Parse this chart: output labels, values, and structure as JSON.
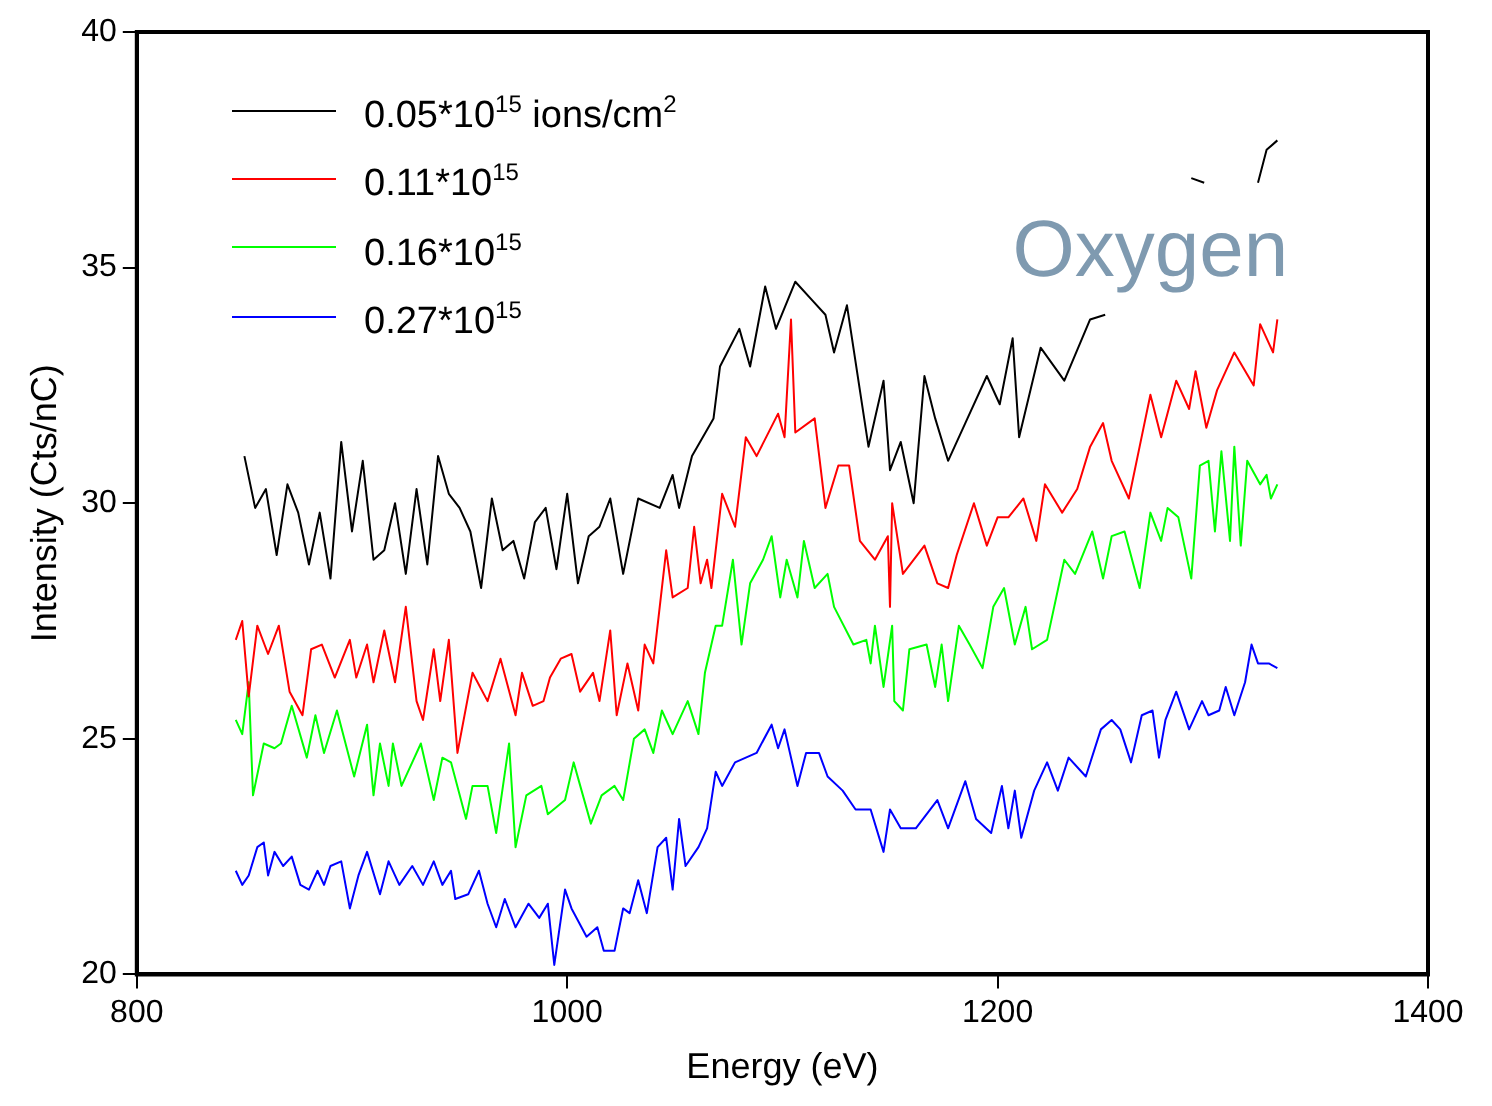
{
  "chart_data": {
    "type": "line",
    "xlabel": "Energy (eV)",
    "ylabel": "Intensity (Cts/nC)",
    "xlim": [
      800,
      1400
    ],
    "xticks": [
      800,
      1000,
      1200,
      1400
    ],
    "ylim": [
      20,
      40
    ],
    "yticks": [
      20,
      25,
      30,
      35,
      40
    ],
    "grid": false,
    "legend": "top left",
    "marker": "none",
    "line_style": "solid",
    "annotations": [
      "Oxygen"
    ],
    "series": [
      {
        "name": "0.05*10$^{15}$ ions/cm$^{2}$",
        "color": "#000000",
        "x": [
          850,
          855,
          860,
          865,
          870,
          875,
          880,
          885,
          890,
          895,
          900,
          905,
          910,
          915,
          920,
          925,
          930,
          935,
          940,
          945,
          950,
          955,
          960,
          965,
          970,
          975,
          980,
          985,
          990,
          995,
          1000,
          1005,
          1010,
          1015,
          1020,
          1026,
          1033,
          1043,
          1049,
          1052,
          1058,
          1068,
          1071,
          1080,
          1085,
          1092,
          1097,
          1106,
          1114,
          1120,
          1124,
          1130,
          1136,
          1140,
          1147,
          1150,
          1155,
          1161,
          1166,
          1171,
          1177,
          1185,
          1195,
          1201,
          1207,
          1210,
          1220,
          1231,
          1243,
          1250,
          1270,
          1290,
          1296,
          1310,
          1321,
          1325,
          1330
        ],
        "values": [
          31.0,
          29.9,
          30.3,
          28.9,
          30.4,
          29.8,
          28.7,
          29.8,
          28.4,
          31.3,
          29.4,
          30.9,
          28.8,
          29.0,
          30.0,
          28.5,
          30.3,
          28.7,
          31.0,
          30.2,
          29.9,
          29.4,
          28.2,
          30.1,
          29.0,
          29.2,
          28.4,
          29.6,
          29.9,
          28.6,
          30.2,
          28.3,
          29.3,
          29.5,
          30.1,
          28.5,
          30.1,
          29.9,
          30.6,
          29.9,
          31.0,
          31.8,
          32.9,
          33.7,
          32.9,
          34.6,
          33.7,
          34.7,
          34.3,
          34.0,
          33.2,
          34.2,
          32.4,
          31.2,
          32.6,
          30.7,
          31.3,
          30.0,
          32.7,
          31.8,
          30.9,
          31.7,
          32.7,
          32.1,
          33.5,
          31.4,
          33.3,
          32.6,
          33.9,
          34.0,
          null,
          36.9,
          36.8,
          null,
          36.8,
          37.5,
          37.7
        ]
      },
      {
        "name": "0.11*10$^{15}$",
        "color": "#ff0000",
        "x": [
          846,
          849,
          852,
          856,
          861,
          866,
          871,
          877,
          881,
          886,
          892,
          899,
          902,
          907,
          910,
          915,
          920,
          925,
          930,
          933,
          938,
          941,
          945,
          949,
          956,
          963,
          969,
          976,
          979,
          984,
          989,
          992,
          997,
          1002,
          1006,
          1012,
          1015,
          1020,
          1023,
          1028,
          1033,
          1036,
          1040,
          1046,
          1049,
          1056,
          1059,
          1062,
          1065,
          1067,
          1072,
          1078,
          1083,
          1088,
          1098,
          1101,
          1104,
          1106,
          1115,
          1120,
          1126,
          1131,
          1136,
          1143,
          1149,
          1150,
          1151,
          1156,
          1166,
          1172,
          1177,
          1181,
          1189,
          1195,
          1200,
          1205,
          1212,
          1218,
          1222,
          1230,
          1237,
          1243,
          1249,
          1253,
          1261,
          1266,
          1271,
          1276,
          1283,
          1289,
          1292,
          1297,
          1302,
          1310,
          1319,
          1322,
          1328,
          1330
        ],
        "values": [
          27.1,
          27.5,
          25.9,
          27.4,
          26.8,
          27.4,
          26.0,
          25.5,
          26.9,
          27.0,
          26.3,
          27.1,
          26.3,
          27.0,
          26.2,
          27.3,
          26.2,
          27.8,
          25.8,
          25.4,
          26.9,
          25.8,
          27.1,
          24.7,
          26.4,
          25.8,
          26.7,
          25.5,
          26.4,
          25.7,
          25.8,
          26.3,
          26.7,
          26.8,
          26.0,
          26.4,
          25.8,
          27.3,
          25.5,
          26.6,
          25.6,
          27.0,
          26.6,
          29.0,
          28.0,
          28.2,
          29.5,
          28.3,
          28.8,
          28.2,
          30.2,
          29.5,
          31.4,
          31.0,
          31.9,
          31.4,
          33.9,
          31.5,
          31.8,
          29.9,
          30.8,
          30.8,
          29.2,
          28.8,
          29.3,
          27.8,
          30.0,
          28.5,
          29.1,
          28.3,
          28.2,
          28.9,
          30.0,
          29.1,
          29.7,
          29.7,
          30.1,
          29.2,
          30.4,
          29.8,
          30.3,
          31.2,
          31.7,
          30.9,
          30.1,
          31.2,
          32.3,
          31.4,
          32.6,
          32.0,
          32.8,
          31.6,
          32.4,
          33.2,
          32.5,
          33.8,
          33.2,
          33.9
        ]
      },
      {
        "name": "0.16*10$^{15}$",
        "color": "#00ff00",
        "x": [
          846,
          849,
          852,
          854,
          859,
          864,
          867,
          872,
          879,
          883,
          887,
          893,
          901,
          907,
          910,
          913,
          917,
          919,
          923,
          932,
          938,
          942,
          946,
          953,
          956,
          963,
          967,
          973,
          976,
          981,
          988,
          991,
          999,
          1003,
          1011,
          1016,
          1022,
          1026,
          1031,
          1036,
          1040,
          1044,
          1049,
          1056,
          1061,
          1064,
          1069,
          1072,
          1077,
          1081,
          1085,
          1091,
          1095,
          1099,
          1102,
          1107,
          1110,
          1115,
          1121,
          1124,
          1133,
          1139,
          1141,
          1143,
          1147,
          1151,
          1152,
          1156,
          1159,
          1167,
          1171,
          1174,
          1177,
          1182,
          1187,
          1193,
          1198,
          1203,
          1208,
          1213,
          1216,
          1223,
          1231,
          1236,
          1244,
          1249,
          1253,
          1259,
          1266,
          1271,
          1276,
          1279,
          1284,
          1290,
          1294,
          1298,
          1301,
          1304,
          1308,
          1310,
          1313,
          1316,
          1322,
          1325,
          1327,
          1330
        ],
        "values": [
          25.4,
          25.1,
          26.2,
          23.8,
          24.9,
          24.8,
          24.9,
          25.7,
          24.6,
          25.5,
          24.7,
          25.6,
          24.2,
          25.3,
          23.8,
          24.9,
          24.0,
          24.9,
          24.0,
          24.9,
          23.7,
          24.6,
          24.5,
          23.3,
          24.0,
          24.0,
          23.0,
          24.9,
          22.7,
          23.8,
          24.0,
          23.4,
          23.7,
          24.5,
          23.2,
          23.8,
          24.0,
          23.7,
          25.0,
          25.2,
          24.7,
          25.6,
          25.1,
          25.8,
          25.1,
          26.4,
          27.4,
          27.4,
          28.8,
          27.0,
          28.3,
          28.8,
          29.3,
          28.0,
          28.8,
          28.0,
          29.2,
          28.2,
          28.5,
          27.8,
          27.0,
          27.1,
          26.6,
          27.4,
          26.1,
          27.4,
          25.8,
          25.6,
          26.9,
          27.0,
          26.1,
          27.0,
          25.8,
          27.4,
          27.0,
          26.5,
          27.8,
          28.2,
          27.0,
          27.8,
          26.9,
          27.1,
          28.8,
          28.5,
          29.4,
          28.4,
          29.3,
          29.4,
          28.2,
          29.8,
          29.2,
          29.9,
          29.7,
          28.4,
          30.8,
          30.9,
          29.4,
          31.1,
          29.2,
          31.2,
          29.1,
          30.9,
          30.4,
          30.6,
          30.1,
          30.4
        ]
      },
      {
        "name": "0.27*10$^{15}$",
        "color": "#0000ff",
        "x": [
          846,
          849,
          852,
          856,
          859,
          861,
          864,
          868,
          872,
          876,
          880,
          884,
          887,
          890,
          895,
          899,
          903,
          907,
          913,
          917,
          922,
          928,
          933,
          938,
          942,
          946,
          948,
          954,
          959,
          963,
          967,
          971,
          976,
          982,
          987,
          991,
          994,
          999,
          1002,
          1009,
          1014,
          1017,
          1022,
          1026,
          1029,
          1033,
          1037,
          1042,
          1046,
          1049,
          1052,
          1055,
          1061,
          1065,
          1069,
          1072,
          1078,
          1083,
          1088,
          1095,
          1098,
          1101,
          1107,
          1111,
          1117,
          1121,
          1128,
          1134,
          1141,
          1147,
          1150,
          1155,
          1162,
          1172,
          1177,
          1185,
          1190,
          1197,
          1202,
          1205,
          1208,
          1211,
          1217,
          1223,
          1228,
          1233,
          1241,
          1248,
          1253,
          1257,
          1262,
          1267,
          1272,
          1275,
          1278,
          1283,
          1289,
          1295,
          1298,
          1303,
          1306,
          1310,
          1315,
          1318,
          1321,
          1326,
          1330
        ],
        "values": [
          22.2,
          21.9,
          22.1,
          22.7,
          22.8,
          22.1,
          22.6,
          22.3,
          22.5,
          21.9,
          21.8,
          22.2,
          21.9,
          22.3,
          22.4,
          21.4,
          22.1,
          22.6,
          21.7,
          22.4,
          21.9,
          22.3,
          21.9,
          22.4,
          21.9,
          22.2,
          21.6,
          21.7,
          22.2,
          21.5,
          21.0,
          21.6,
          21.0,
          21.5,
          21.2,
          21.5,
          20.2,
          21.8,
          21.4,
          20.8,
          21.0,
          20.5,
          20.5,
          21.4,
          21.3,
          22.0,
          21.3,
          22.7,
          22.9,
          21.8,
          23.3,
          22.3,
          22.7,
          23.1,
          24.3,
          24.0,
          24.5,
          24.6,
          24.7,
          25.3,
          24.8,
          25.2,
          24.0,
          24.7,
          24.7,
          24.2,
          23.9,
          23.5,
          23.5,
          22.6,
          23.5,
          23.1,
          23.1,
          23.7,
          23.1,
          24.1,
          23.3,
          23.0,
          24.0,
          23.1,
          23.9,
          22.9,
          23.9,
          24.5,
          23.9,
          24.6,
          24.2,
          25.2,
          25.4,
          25.2,
          24.5,
          25.5,
          25.6,
          24.6,
          25.4,
          26.0,
          25.2,
          25.8,
          25.5,
          25.6,
          26.1,
          25.5,
          26.2,
          27.0,
          26.6,
          26.6,
          26.5
        ]
      }
    ]
  }
}
